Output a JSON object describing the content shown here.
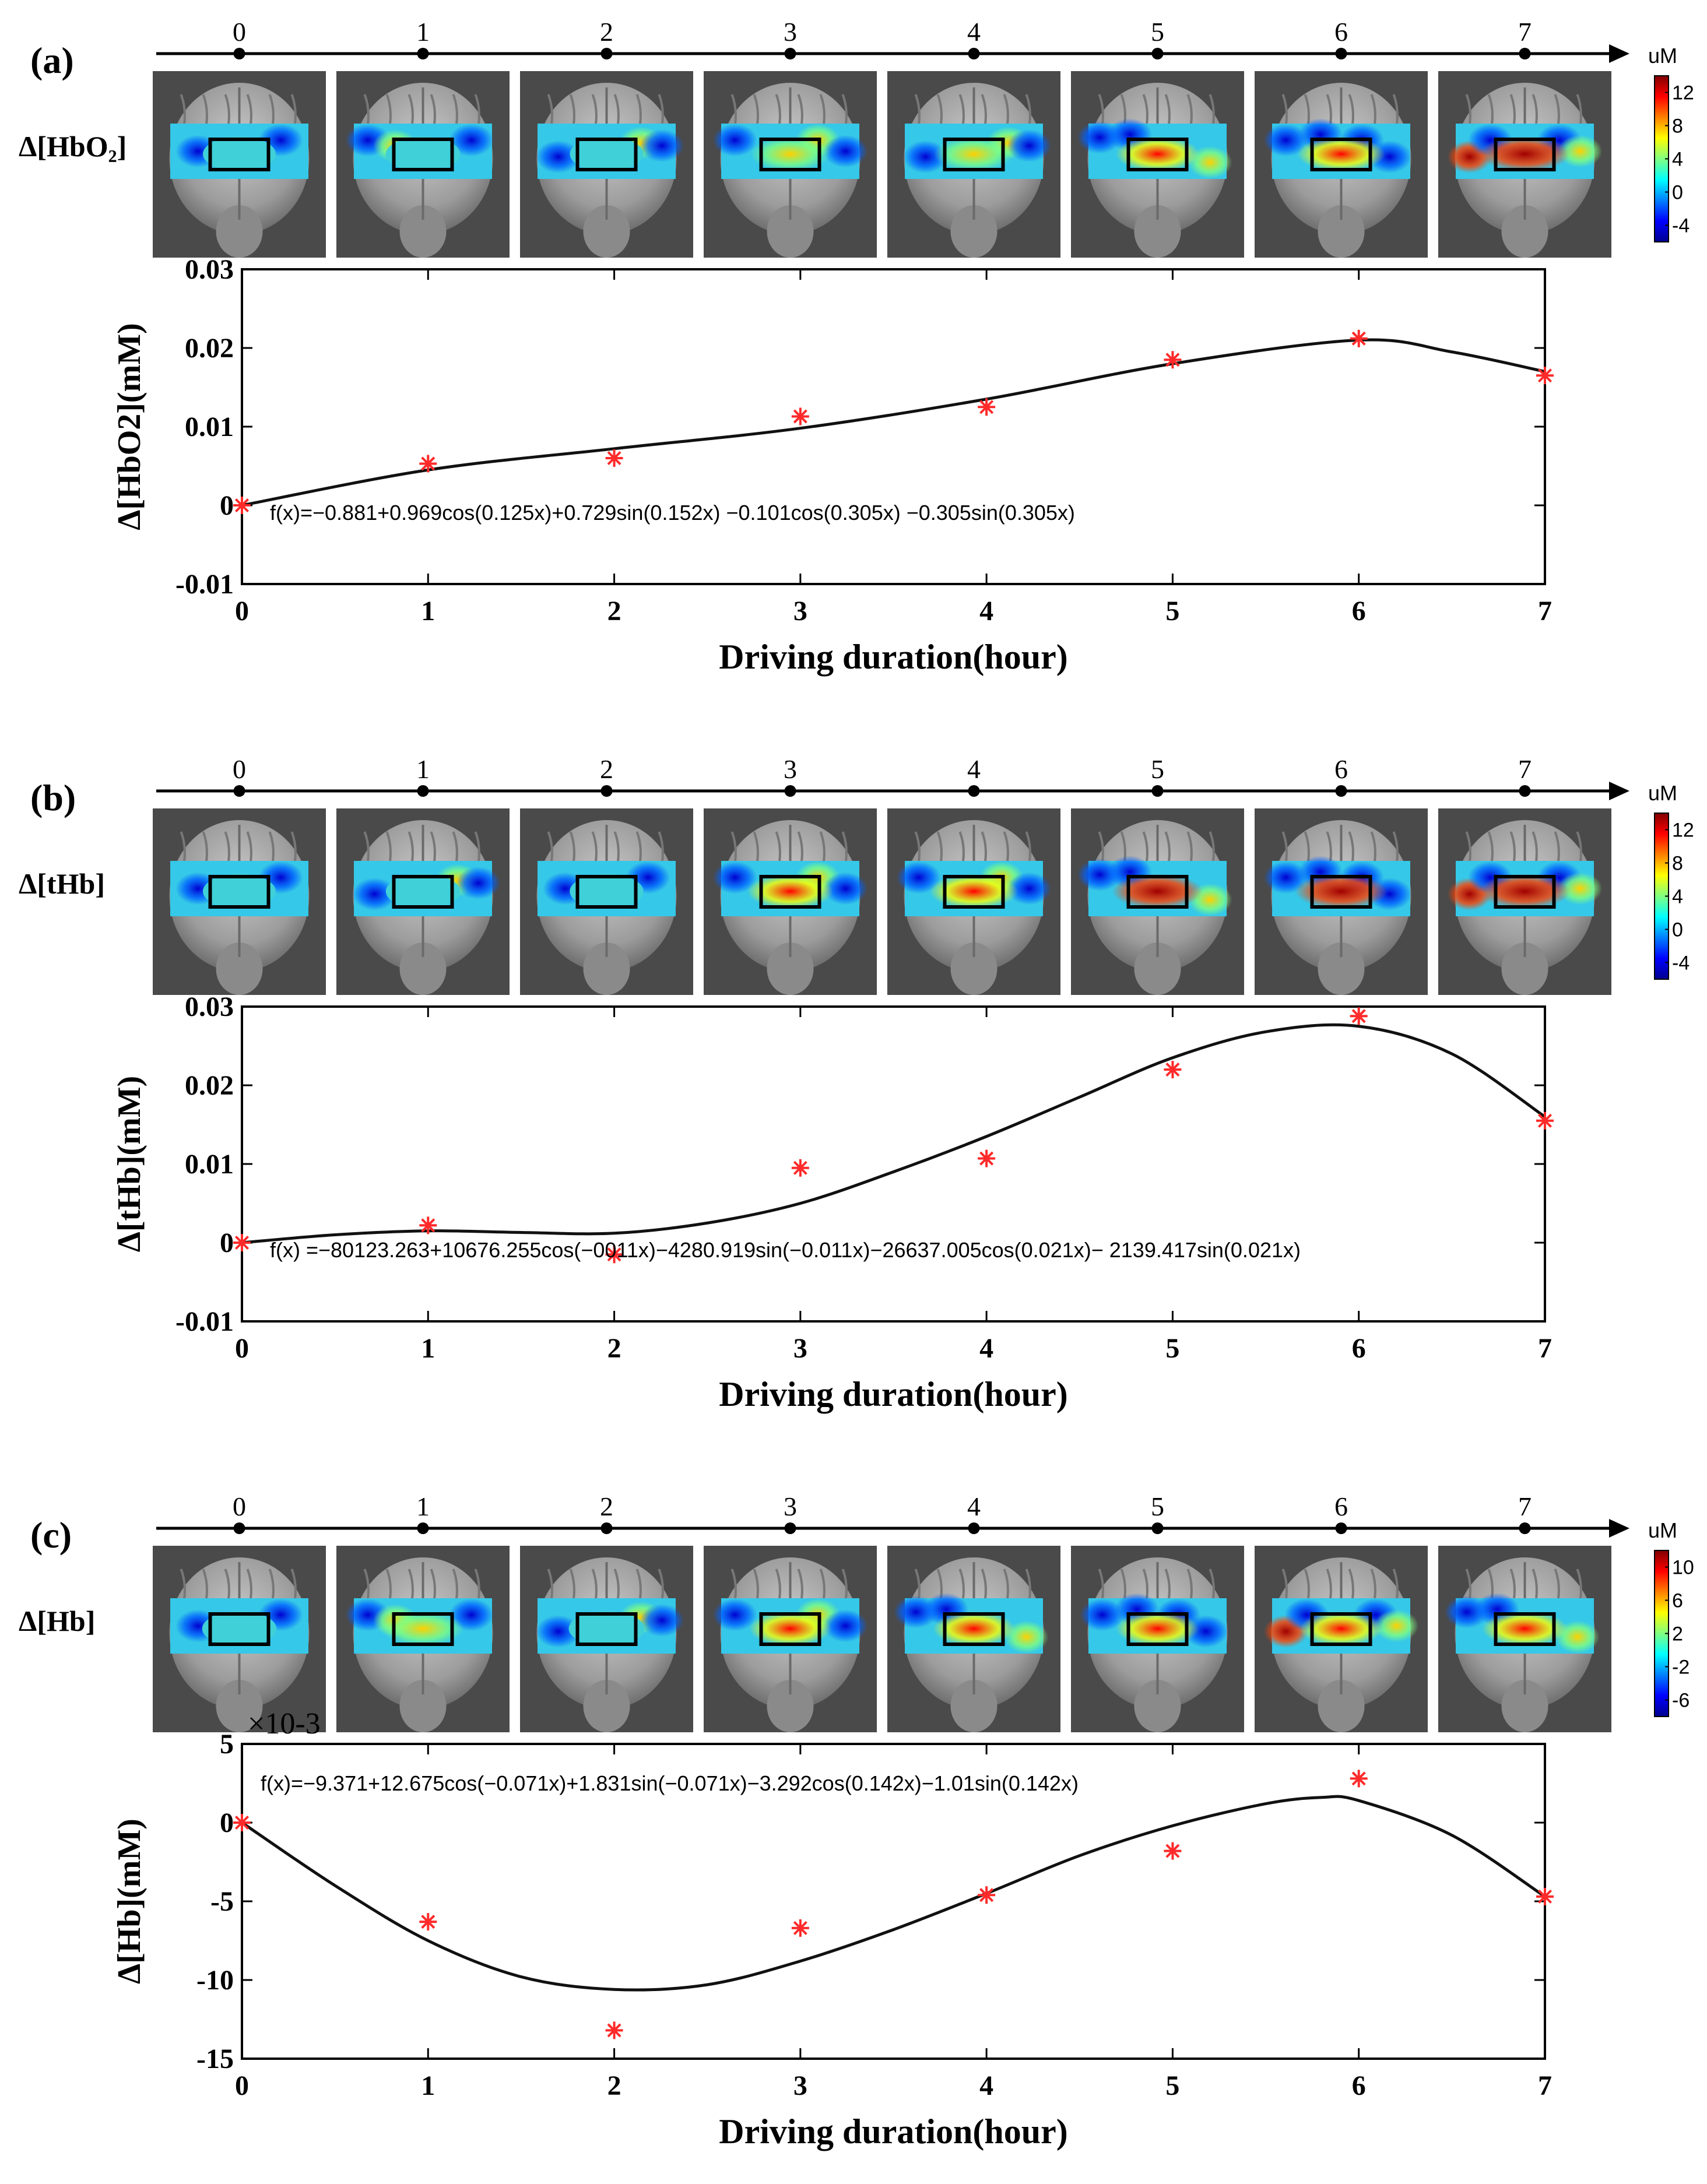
{
  "colors": {
    "marker": "#ff2a2a",
    "fit_line": "#111111",
    "axis": "#000000",
    "brain_bg": "#4a4a4a",
    "brain_gray": "#a9a9a9",
    "colormap": [
      "#00008f",
      "#0000ff",
      "#0080ff",
      "#00ffff",
      "#80ff80",
      "#ffff00",
      "#ff8000",
      "#ff0000",
      "#800000"
    ]
  },
  "panels": [
    {
      "id": "a",
      "panel_label": "(a)",
      "quantity_label": "Δ[HbO₂]",
      "timeline_ticks": [
        "0",
        "1",
        "2",
        "3",
        "4",
        "5",
        "6",
        "7"
      ],
      "colorbar": {
        "unit": "uM",
        "ticks": [
          "12",
          "8",
          "4",
          "0",
          "-4"
        ],
        "range": [
          -6,
          14
        ]
      },
      "roi_intensity": [
        0.3,
        0.35,
        0.32,
        0.55,
        0.55,
        0.68,
        0.82,
        0.92
      ],
      "map_variant": [
        0,
        1,
        2,
        3,
        2,
        4,
        5,
        6
      ],
      "equation": "f(x)=−0.881+0.969cos(0.125x)+0.729sin(0.152x) −0.101cos(0.305x) −0.305sin(0.305x)",
      "chart_data": {
        "type": "scatter",
        "title": "",
        "xlabel": "Driving duration(hour)",
        "ylabel": "Δ[HbO2](mM)",
        "x": [
          0,
          1,
          2,
          3,
          4,
          5,
          6,
          7
        ],
        "y": [
          0,
          0.0053,
          0.006,
          0.0113,
          0.0125,
          0.0185,
          0.0212,
          0.0165
        ],
        "fit": {
          "x": [
            0,
            1,
            2,
            3,
            4,
            5,
            6,
            6.5,
            7
          ],
          "y": [
            0,
            0.0045,
            0.0072,
            0.0098,
            0.0135,
            0.018,
            0.021,
            0.0195,
            0.017
          ]
        },
        "xlim": [
          0,
          7
        ],
        "ylim": [
          -0.01,
          0.03
        ],
        "yticks": [
          -0.01,
          0,
          0.01,
          0.02,
          0.03
        ],
        "ytick_labels": [
          "-0.01",
          "0",
          "0.01",
          "0.02",
          "0.03"
        ],
        "xtick_labels": [
          "0",
          "1",
          "2",
          "3",
          "4",
          "5",
          "6",
          "7"
        ],
        "exponent_label": ""
      }
    },
    {
      "id": "b",
      "panel_label": "(b)",
      "quantity_label": "Δ[tHb]",
      "timeline_ticks": [
        "0",
        "1",
        "2",
        "3",
        "4",
        "5",
        "6",
        "7"
      ],
      "colorbar": {
        "unit": "uM",
        "ticks": [
          "12",
          "8",
          "4",
          "0",
          "-4"
        ],
        "range": [
          -6,
          14
        ]
      },
      "roi_intensity": [
        0.3,
        0.35,
        0.33,
        0.75,
        0.85,
        0.92,
        0.98,
        0.95
      ],
      "map_variant": [
        0,
        2,
        0,
        3,
        3,
        4,
        5,
        6
      ],
      "equation": "f(x) =−80123.263+10676.255cos(−0011x)−4280.919sin(−0.011x)−26637.005cos(0.021x)− 2139.417sin(0.021x)",
      "chart_data": {
        "type": "scatter",
        "title": "",
        "xlabel": "Driving duration(hour)",
        "ylabel": "Δ[tHb](mM)",
        "x": [
          0,
          1,
          2,
          3,
          4,
          5,
          6,
          7
        ],
        "y": [
          0,
          0.0022,
          -0.0015,
          0.0095,
          0.0107,
          0.022,
          0.0288,
          0.0155
        ],
        "fit": {
          "x": [
            0,
            0.5,
            1,
            1.5,
            2,
            2.5,
            3,
            3.5,
            4,
            4.5,
            5,
            5.5,
            6,
            6.5,
            7
          ],
          "y": [
            0,
            0.001,
            0.0015,
            0.0013,
            0.0012,
            0.0025,
            0.005,
            0.009,
            0.0135,
            0.0185,
            0.0235,
            0.0268,
            0.0275,
            0.024,
            0.016
          ]
        },
        "xlim": [
          0,
          7
        ],
        "ylim": [
          -0.01,
          0.03
        ],
        "yticks": [
          -0.01,
          0,
          0.01,
          0.02,
          0.03
        ],
        "ytick_labels": [
          "-0.01",
          "0",
          "0.01",
          "0.02",
          "0.03"
        ],
        "xtick_labels": [
          "0",
          "1",
          "2",
          "3",
          "4",
          "5",
          "6",
          "7"
        ],
        "exponent_label": ""
      }
    },
    {
      "id": "c",
      "panel_label": "(c)",
      "quantity_label": "Δ[Hb]",
      "timeline_ticks": [
        "0",
        "1",
        "2",
        "3",
        "4",
        "5",
        "6",
        "7"
      ],
      "colorbar": {
        "unit": "uM",
        "ticks": [
          "10",
          "6",
          "2",
          "-2",
          "-6"
        ],
        "range": [
          -8,
          12
        ]
      },
      "roi_intensity": [
        0.35,
        0.6,
        0.4,
        0.62,
        0.62,
        0.65,
        0.65,
        0.75
      ],
      "map_variant": [
        0,
        1,
        2,
        3,
        4,
        5,
        6,
        4
      ],
      "equation": "f(x)=−9.371+12.675cos(−0.071x)+1.831sin(−0.071x)−3.292cos(0.142x)−1.01sin(0.142x)",
      "chart_data": {
        "type": "scatter",
        "title": "",
        "xlabel": "Driving duration(hour)",
        "ylabel": "Δ[Hb](mM)",
        "x": [
          0,
          1,
          2,
          3,
          4,
          5,
          6,
          7
        ],
        "y": [
          0,
          -6.3,
          -13.2,
          -6.7,
          -4.6,
          -1.8,
          2.8,
          -4.7
        ],
        "fit": {
          "x": [
            0,
            0.5,
            1,
            1.5,
            2,
            2.5,
            3,
            3.5,
            4,
            4.5,
            5,
            5.5,
            5.8,
            6,
            6.5,
            7
          ],
          "y": [
            0,
            -4,
            -7.5,
            -9.8,
            -10.6,
            -10.3,
            -8.8,
            -6.8,
            -4.5,
            -2.1,
            -0.2,
            1.2,
            1.6,
            1.4,
            -0.8,
            -4.7
          ]
        },
        "xlim": [
          0,
          7
        ],
        "ylim": [
          -15,
          5
        ],
        "yticks": [
          -15,
          -10,
          -5,
          0,
          5
        ],
        "ytick_labels": [
          "-15",
          "-10",
          "-5",
          "0",
          "5"
        ],
        "xtick_labels": [
          "0",
          "1",
          "2",
          "3",
          "4",
          "5",
          "6",
          "7"
        ],
        "exponent_label": "×10-3"
      }
    }
  ]
}
